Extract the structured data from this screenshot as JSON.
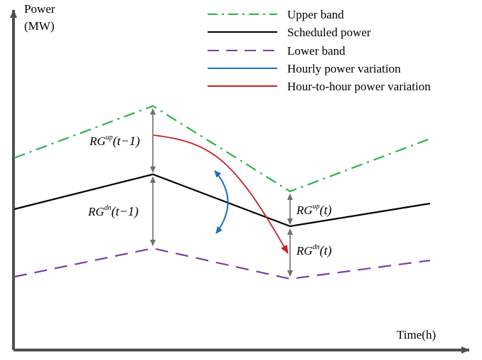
{
  "axes": {
    "y_label_line1": "Power",
    "y_label_line2": "(MW)",
    "x_label": "Time(h)"
  },
  "legend": {
    "items": [
      {
        "label": "Upper band",
        "color": "#2db34a",
        "style": "dash-dot"
      },
      {
        "label": "Scheduled power",
        "color": "#000000",
        "style": "solid"
      },
      {
        "label": "Lower band",
        "color": "#7b3fa0",
        "style": "dashed"
      },
      {
        "label": "Hourly power variation",
        "color": "#1f6fbf",
        "style": "solid"
      },
      {
        "label": "Hour-to-hour power variation",
        "color": "#c8202a",
        "style": "solid"
      }
    ]
  },
  "annotations": {
    "rg_up_prev": {
      "base": "RG",
      "sup": "up",
      "arg": "(t−1)"
    },
    "rg_dn_prev": {
      "base": "RG",
      "sup": "dn",
      "arg": "(t−1)"
    },
    "rg_up_curr": {
      "base": "RG",
      "sup": "up",
      "arg": "(t)"
    },
    "rg_dn_curr": {
      "base": "RG",
      "sup": "dn",
      "arg": "(t)"
    }
  },
  "colors": {
    "axis": "#505050",
    "gap_arrow": "#707070",
    "upper": "#2db34a",
    "scheduled": "#000000",
    "lower": "#7b3fa0",
    "hourly": "#1f6fbf",
    "hour_to_hour": "#c8202a"
  }
}
